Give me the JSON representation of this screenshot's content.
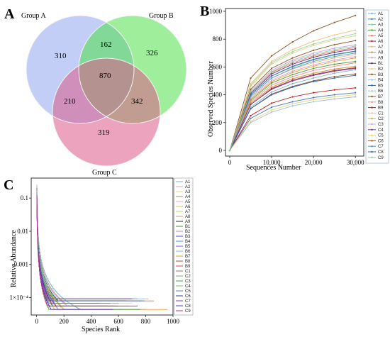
{
  "panels": {
    "a": "A",
    "b": "B",
    "c": "C"
  },
  "chart_data": [
    {
      "type": "venn",
      "sets": [
        {
          "name": "Group A",
          "color": "#8fa6ef"
        },
        {
          "name": "Group B",
          "color": "#4fe048"
        },
        {
          "name": "Group C",
          "color": "#dd5a88"
        }
      ],
      "regions": {
        "A_only": "310",
        "B_only": "326",
        "C_only": "319",
        "AB": "162",
        "AC": "210",
        "BC": "342",
        "ABC": "870"
      }
    },
    {
      "type": "line",
      "xlabel": "Sequences Number",
      "ylabel": "Observed Species Number",
      "xlim": [
        0,
        32000
      ],
      "ylim": [
        0,
        1000
      ],
      "xticks": [
        0,
        10000,
        20000,
        30000
      ],
      "xtick_labels": [
        "0",
        "10,000",
        "20,000",
        "30,000"
      ],
      "yticks": [
        0,
        200,
        400,
        600,
        800,
        1000
      ],
      "x": [
        0,
        5000,
        10000,
        15000,
        20000,
        25000,
        30000
      ],
      "series": [
        {
          "name": "A1",
          "color": "#7ab3d9",
          "values": [
            0,
            310,
            420,
            480,
            520,
            555,
            580
          ]
        },
        {
          "name": "A2",
          "color": "#4a78b8",
          "values": [
            0,
            230,
            310,
            350,
            380,
            400,
            415
          ]
        },
        {
          "name": "A3",
          "color": "#7fd0a0",
          "values": [
            0,
            400,
            535,
            600,
            650,
            685,
            710
          ]
        },
        {
          "name": "A4",
          "color": "#4f9a3c",
          "values": [
            0,
            360,
            485,
            545,
            590,
            620,
            640
          ]
        },
        {
          "name": "A5",
          "color": "#f07070",
          "values": [
            0,
            420,
            560,
            630,
            680,
            715,
            740
          ]
        },
        {
          "name": "A6",
          "color": "#b0233c",
          "values": [
            0,
            330,
            440,
            500,
            540,
            570,
            590
          ]
        },
        {
          "name": "A7",
          "color": "#f5b76a",
          "values": [
            0,
            390,
            520,
            585,
            630,
            665,
            690
          ]
        },
        {
          "name": "A8",
          "color": "#e88518",
          "values": [
            0,
            340,
            455,
            515,
            555,
            585,
            605
          ]
        },
        {
          "name": "A9",
          "color": "#c9a3d9",
          "values": [
            0,
            380,
            505,
            570,
            615,
            650,
            675
          ]
        },
        {
          "name": "B1",
          "color": "#57287a",
          "values": [
            0,
            410,
            550,
            620,
            670,
            705,
            730
          ]
        },
        {
          "name": "B2",
          "color": "#e0d68a",
          "values": [
            0,
            460,
            620,
            700,
            755,
            795,
            825
          ]
        },
        {
          "name": "B3",
          "color": "#8a4f2a",
          "values": [
            0,
            300,
            405,
            460,
            500,
            530,
            550
          ]
        },
        {
          "name": "B4",
          "color": "#a0bde0",
          "values": [
            0,
            200,
            275,
            320,
            350,
            370,
            385
          ]
        },
        {
          "name": "B5",
          "color": "#2f5fa8",
          "values": [
            0,
            400,
            535,
            605,
            655,
            690,
            715
          ]
        },
        {
          "name": "B6",
          "color": "#98d6a8",
          "values": [
            0,
            470,
            630,
            710,
            765,
            805,
            840
          ]
        },
        {
          "name": "B7",
          "color": "#8a5a2e",
          "values": [
            0,
            520,
            680,
            780,
            860,
            920,
            970
          ]
        },
        {
          "name": "B8",
          "color": "#f09090",
          "values": [
            0,
            350,
            470,
            530,
            575,
            605,
            630
          ]
        },
        {
          "name": "B9",
          "color": "#c01a20",
          "values": [
            0,
            250,
            340,
            385,
            415,
            435,
            450
          ]
        },
        {
          "name": "C1",
          "color": "#f0c080",
          "values": [
            0,
            480,
            640,
            725,
            785,
            830,
            865
          ]
        },
        {
          "name": "C2",
          "color": "#f0a030",
          "values": [
            0,
            370,
            495,
            560,
            605,
            640,
            665
          ]
        },
        {
          "name": "C3",
          "color": "#c8a8d8",
          "values": [
            0,
            430,
            575,
            650,
            700,
            735,
            760
          ]
        },
        {
          "name": "C4",
          "color": "#6a3e8e",
          "values": [
            0,
            330,
            445,
            505,
            545,
            575,
            595
          ]
        },
        {
          "name": "C5",
          "color": "#e2d87a",
          "values": [
            0,
            210,
            290,
            335,
            365,
            385,
            400
          ]
        },
        {
          "name": "C6",
          "color": "#92572c",
          "values": [
            0,
            440,
            590,
            665,
            720,
            760,
            790
          ]
        },
        {
          "name": "C7",
          "color": "#5a94d0",
          "values": [
            0,
            390,
            520,
            590,
            640,
            675,
            700
          ]
        },
        {
          "name": "C8",
          "color": "#2e65b8",
          "values": [
            0,
            300,
            400,
            455,
            495,
            520,
            540
          ]
        },
        {
          "name": "C9",
          "color": "#8ed0a4",
          "values": [
            0,
            420,
            565,
            640,
            690,
            725,
            750
          ]
        }
      ]
    },
    {
      "type": "line",
      "scale": "log",
      "xlabel": "Species Rank",
      "ylabel": "Relative Abundance",
      "xlim": [
        -40,
        1000
      ],
      "ylim": [
        3e-05,
        0.4
      ],
      "xticks": [
        0,
        200,
        400,
        600,
        800,
        1000
      ],
      "yticks": [
        0.1,
        0.01,
        0.001,
        0.0001
      ],
      "ytick_labels": [
        "0.1",
        "0.01",
        "0.001",
        "1×10⁻⁴"
      ],
      "series": [
        {
          "name": "A1",
          "color": "#7ab3d9",
          "n_species": 620
        },
        {
          "name": "A2",
          "color": "#c4a8d8",
          "n_species": 560
        },
        {
          "name": "A3",
          "color": "#e6d98a",
          "n_species": 700
        },
        {
          "name": "A4",
          "color": "#b7874c",
          "n_species": 640
        },
        {
          "name": "A5",
          "color": "#f0a4c0",
          "n_species": 720
        },
        {
          "name": "A6",
          "color": "#d8c060",
          "n_species": 580
        },
        {
          "name": "A7",
          "color": "#a8d870",
          "n_species": 680
        },
        {
          "name": "A8",
          "color": "#c8a070",
          "n_species": 600
        },
        {
          "name": "A9",
          "color": "#2a2a2a",
          "n_species": 660
        },
        {
          "name": "B1",
          "color": "#4a8a3a",
          "n_species": 740
        },
        {
          "name": "B2",
          "color": "#c080c0",
          "n_species": 800
        },
        {
          "name": "B3",
          "color": "#2a55c0",
          "n_species": 520
        },
        {
          "name": "B4",
          "color": "#3a9ad8",
          "n_species": 540
        },
        {
          "name": "B5",
          "color": "#7060c0",
          "n_species": 620
        },
        {
          "name": "B6",
          "color": "#80c0e0",
          "n_species": 820
        },
        {
          "name": "B7",
          "color": "#e0a020",
          "n_species": 960
        },
        {
          "name": "B8",
          "color": "#9a5030",
          "n_species": 600
        },
        {
          "name": "B9",
          "color": "#e04050",
          "n_species": 460
        },
        {
          "name": "C1",
          "color": "#a07060",
          "n_species": 860
        },
        {
          "name": "C2",
          "color": "#60b060",
          "n_species": 650
        },
        {
          "name": "C3",
          "color": "#40a040",
          "n_species": 760
        },
        {
          "name": "C4",
          "color": "#80b090",
          "n_species": 590
        },
        {
          "name": "C5",
          "color": "#5080d0",
          "n_species": 430
        },
        {
          "name": "C6",
          "color": "#3040a0",
          "n_species": 790
        },
        {
          "name": "C7",
          "color": "#9040b0",
          "n_species": 700
        },
        {
          "name": "C8",
          "color": "#6030c0",
          "n_species": 560
        },
        {
          "name": "C9",
          "color": "#c03080",
          "n_species": 740
        }
      ]
    }
  ]
}
